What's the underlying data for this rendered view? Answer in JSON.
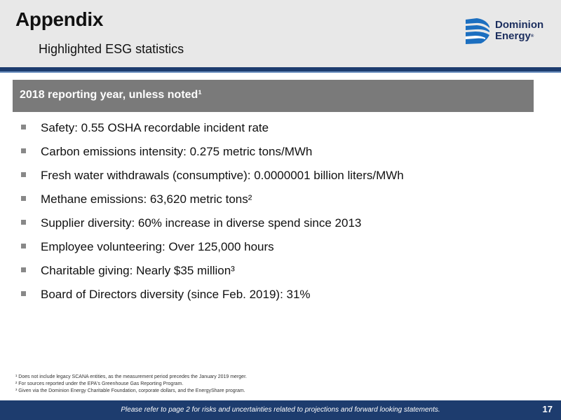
{
  "header": {
    "title": "Appendix",
    "subtitle": "Highlighted ESG statistics"
  },
  "logo": {
    "line1": "Dominion",
    "line2": "Energy",
    "trademark": "®",
    "icon": "dominion-energy-logo-icon",
    "color": "#1c2e5e"
  },
  "section": {
    "heading": "2018 reporting year, unless noted¹"
  },
  "bullets": [
    "Safety: 0.55 OSHA recordable incident rate",
    "Carbon emissions intensity: 0.275 metric tons/MWh",
    "Fresh water withdrawals (consumptive): 0.0000001 billion liters/MWh",
    "Methane emissions: 63,620 metric tons²",
    "Supplier diversity: 60% increase in diverse spend since 2013",
    "Employee volunteering: Over 125,000 hours",
    "Charitable giving: Nearly $35 million³",
    "Board of Directors diversity (since Feb. 2019): 31%"
  ],
  "footnotes": [
    "¹ Does not include legacy SCANA entities, as the measurement period precedes the January 2019 merger.",
    "² For sources reported under the EPA's Greenhouse Gas Reporting Program.",
    "³ Given via the Dominion Energy Charitable Foundation, corporate dollars, and the EnergyShare program."
  ],
  "footer": {
    "disclaimer": "Please refer to page 2 for risks and uncertainties related to projections and forward looking statements.",
    "page_number": "17"
  },
  "colors": {
    "header_bg": "#e8e8e8",
    "navy": "#1d3c6e",
    "section_bar": "#7a7a7a",
    "bullet": "#888888"
  }
}
